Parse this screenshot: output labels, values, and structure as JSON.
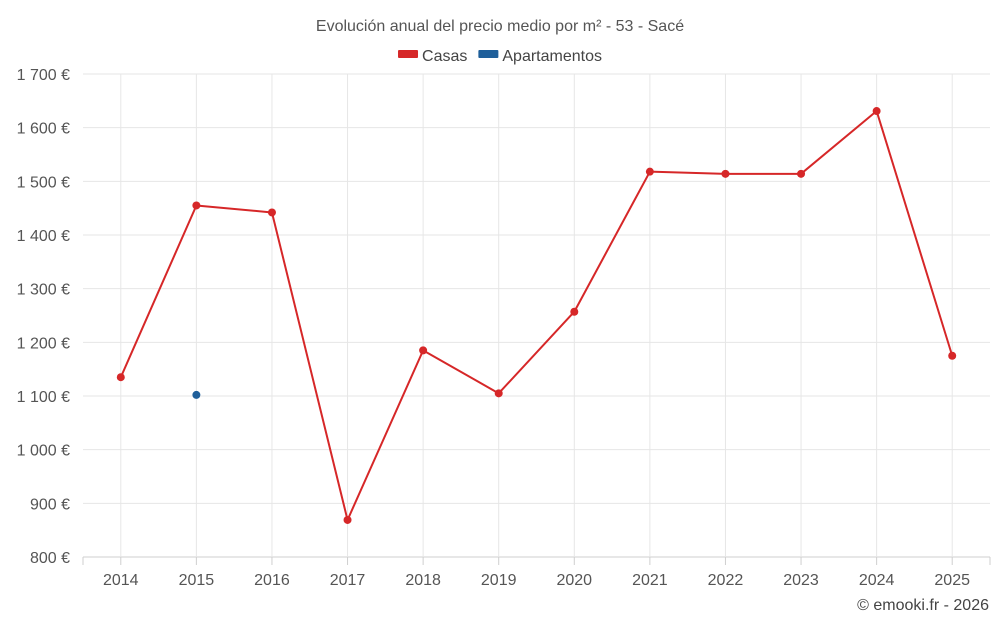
{
  "chart_data": {
    "type": "line",
    "title": "Evolución anual del precio medio por m² - 53 - Sacé",
    "categories": [
      "2014",
      "2015",
      "2016",
      "2017",
      "2018",
      "2019",
      "2020",
      "2021",
      "2022",
      "2023",
      "2024",
      "2025"
    ],
    "series": [
      {
        "name": "Casas",
        "color": "#d62728",
        "values": [
          1135,
          1455,
          1442,
          869,
          1185,
          1105,
          1257,
          1518,
          1514,
          1514,
          1631,
          1175
        ]
      },
      {
        "name": "Apartamentos",
        "color": "#1f5f9a",
        "values": [
          null,
          1102,
          null,
          null,
          null,
          null,
          null,
          null,
          null,
          null,
          null,
          null
        ]
      }
    ],
    "ylim": [
      800,
      1700
    ],
    "yticks": [
      800,
      900,
      1000,
      1100,
      1200,
      1300,
      1400,
      1500,
      1600,
      1700
    ],
    "ytick_labels": [
      "800 €",
      "900 €",
      "1 000 €",
      "1 100 €",
      "1 200 €",
      "1 300 €",
      "1 400 €",
      "1 500 €",
      "1 600 €",
      "1 700 €"
    ],
    "grid": true,
    "legend_position": "top-center",
    "xlabel": "",
    "ylabel": ""
  },
  "footer": {
    "credit": "© emooki.fr - 2026"
  }
}
